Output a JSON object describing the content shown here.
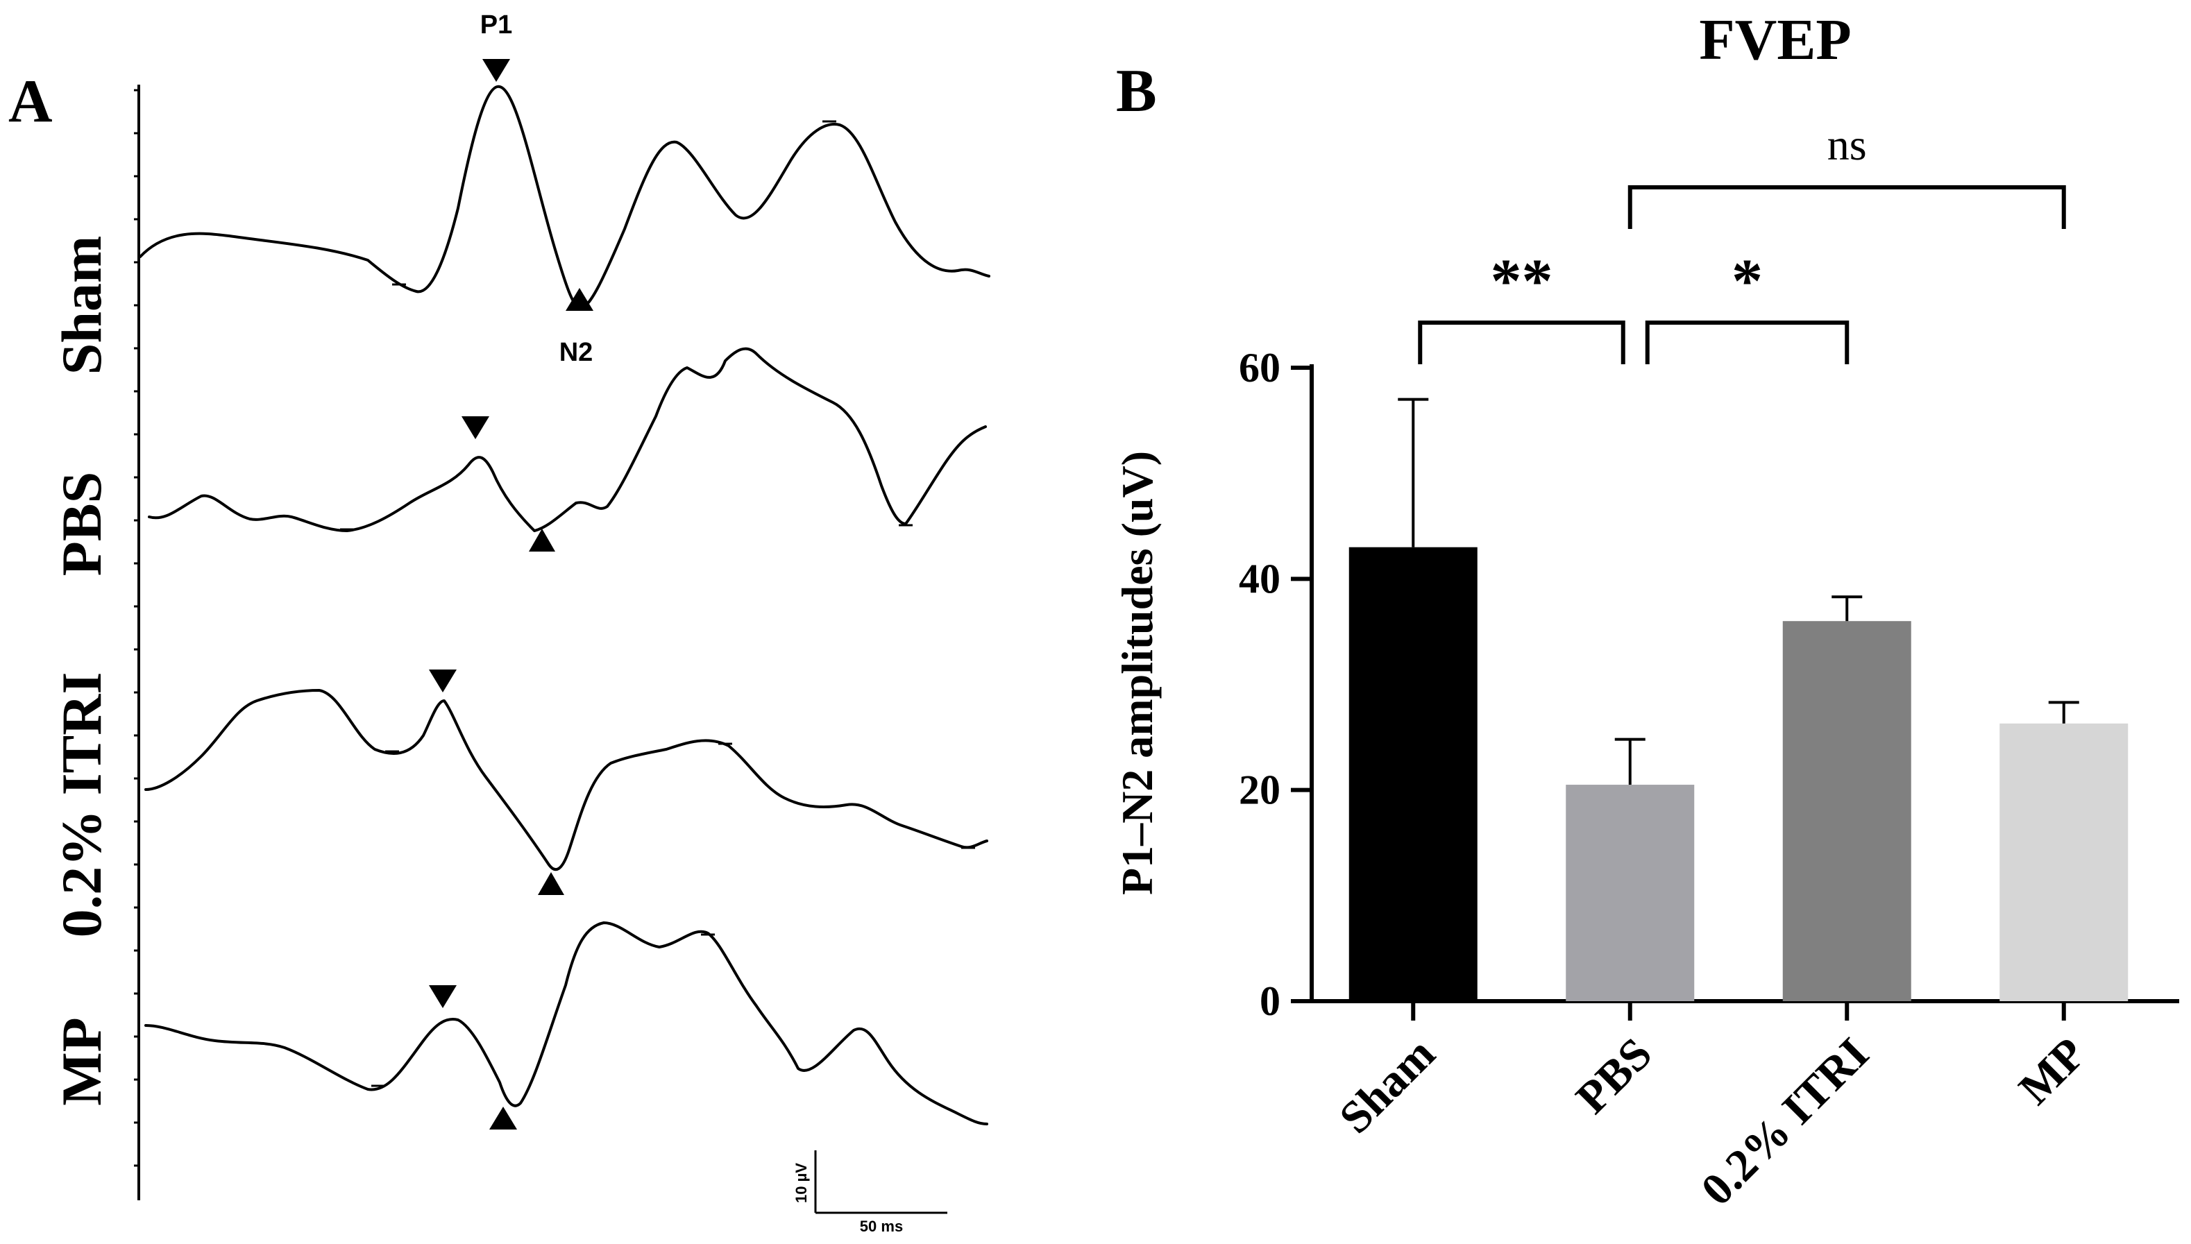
{
  "panel_a": {
    "letter": "A",
    "rows": [
      {
        "label": "Sham",
        "wave": "sham"
      },
      {
        "label": "PBS",
        "wave": "pbs"
      },
      {
        "label": "0.2% ITRI",
        "wave": "itri"
      },
      {
        "label": "MP",
        "wave": "mp"
      }
    ],
    "peak_labels": {
      "p1": "P1",
      "n2": "N2"
    },
    "scale_bar": {
      "amplitude": "10 µV",
      "time": "50 ms"
    }
  },
  "panel_b": {
    "letter": "B"
  },
  "chart_data": {
    "type": "bar",
    "title": "FVEP",
    "xlabel": "",
    "ylabel": "P1–N2 amplitudes (uV)",
    "ylim": [
      0,
      60
    ],
    "yticks": [
      0,
      20,
      40,
      60
    ],
    "categories": [
      "Sham",
      "PBS",
      "0.2% ITRI",
      "MP"
    ],
    "values": [
      43,
      20.5,
      36,
      26.3
    ],
    "errors": [
      14,
      4.3,
      2.3,
      2
    ],
    "colors": [
      "#000000",
      "#a3a3a8",
      "#808080",
      "#d6d6d6"
    ],
    "significance": [
      {
        "from": "Sham",
        "to": "PBS",
        "label": "**"
      },
      {
        "from": "PBS",
        "to": "0.2% ITRI",
        "label": "*"
      },
      {
        "from": "PBS",
        "to": "MP",
        "label": "ns"
      }
    ]
  }
}
